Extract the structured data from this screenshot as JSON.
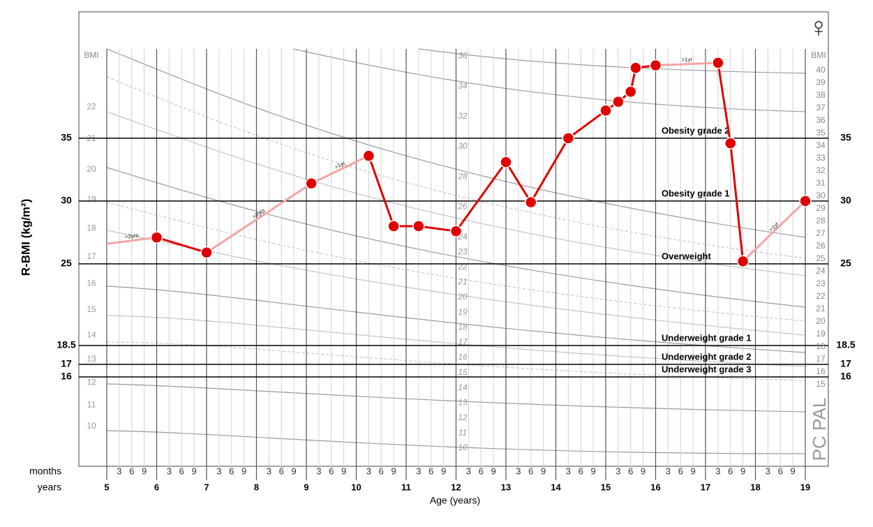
{
  "chart_data": {
    "type": "line",
    "y_label": "R-BMI (kg/m²)",
    "x_label": "Age (years)",
    "x_row_labels": {
      "months": "months",
      "years": "years"
    },
    "bmi_label": "BMI",
    "brand": "PC PAL",
    "sex_symbol": "♀",
    "xlim": [
      5,
      19
    ],
    "xticks": [
      5,
      6,
      7,
      8,
      9,
      10,
      11,
      12,
      13,
      14,
      15,
      16,
      17,
      18,
      19
    ],
    "month_ticks": [
      3,
      6,
      9
    ],
    "ylim": [
      9,
      45
    ],
    "yticks": [
      35,
      30,
      25,
      18.5,
      17,
      16
    ],
    "y2lim": [
      8.6,
      44.6
    ],
    "y2ticks": [
      15,
      16,
      17,
      18,
      19,
      20,
      21,
      22,
      23,
      24,
      25,
      26,
      27,
      28,
      29,
      30,
      31,
      32,
      33,
      34,
      35,
      36,
      37,
      38,
      39,
      40
    ],
    "reference_lines": [
      {
        "value": 35,
        "label": "Obesity grade 2"
      },
      {
        "value": 30,
        "label": "Obesity grade 1"
      },
      {
        "value": 25,
        "label": "Overweight"
      },
      {
        "value": 18.5,
        "label": "Underweight grade 1"
      },
      {
        "value": 17,
        "label": "Underweight grade 2"
      },
      {
        "value": 16,
        "label": "Underweight grade 3"
      }
    ],
    "age5_bmi_labels": [
      22,
      21,
      20,
      19,
      18,
      17,
      16,
      15,
      14,
      13,
      12,
      11,
      10
    ],
    "age12_bmi_labels": [
      36,
      34,
      32,
      30,
      28,
      26,
      24,
      23,
      22,
      21,
      20,
      19,
      18,
      17,
      16,
      15,
      14,
      13,
      12,
      11,
      10
    ],
    "lead_in": {
      "x": 5,
      "value": 26.6,
      "label": ">2yrs"
    },
    "x": [
      6.0,
      7.0,
      9.1,
      10.25,
      10.75,
      11.25,
      12.0,
      13.0,
      13.5,
      14.25,
      15.0,
      15.25,
      15.5,
      15.6,
      16.0,
      17.25,
      17.5,
      17.75,
      19.0
    ],
    "series": [
      {
        "color": "#e00000",
        "values": [
          27.1,
          25.9,
          31.4,
          33.6,
          28.0,
          28.0,
          27.6,
          33.1,
          29.9,
          35.0,
          37.2,
          37.9,
          38.7,
          40.6,
          40.8,
          41.0,
          34.6,
          25.2,
          30.0
        ]
      }
    ],
    "gap_color": "#f4a4a4",
    "gap_labels": [
      null,
      ">2yrs",
      ">1yr",
      null,
      null,
      null,
      null,
      null,
      null,
      null,
      null,
      null,
      null,
      null,
      ">1yr",
      null,
      null,
      ">1yr"
    ]
  }
}
